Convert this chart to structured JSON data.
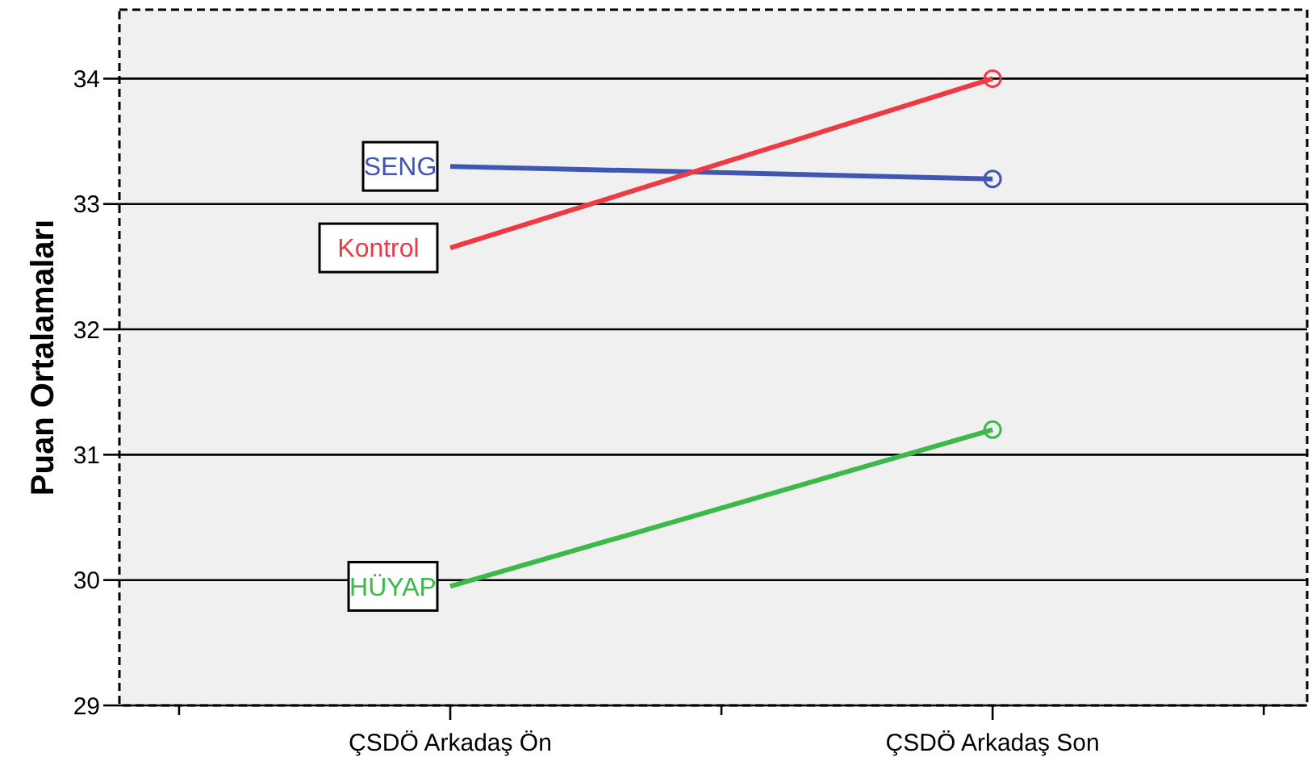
{
  "chart_data": {
    "type": "line",
    "ylabel": "Puan Ortalamaları",
    "categories": [
      "ÇSDÖ Arkadaş Ön",
      "ÇSDÖ Arkadaş Son"
    ],
    "series": [
      {
        "name": "SENG",
        "color": "#3f57b2",
        "values": [
          33.3,
          33.2
        ]
      },
      {
        "name": "Kontrol",
        "color": "#ee3a43",
        "values": [
          32.65,
          34.0
        ]
      },
      {
        "name": "HÜYAP",
        "color": "#3cb94a",
        "values": [
          29.95,
          31.2
        ]
      }
    ],
    "ylim": [
      29,
      34.55
    ],
    "yticks": [
      29,
      30,
      31,
      32,
      33,
      34
    ],
    "grid": "y",
    "legend": false,
    "marker": "circle",
    "line_style": "solid"
  }
}
